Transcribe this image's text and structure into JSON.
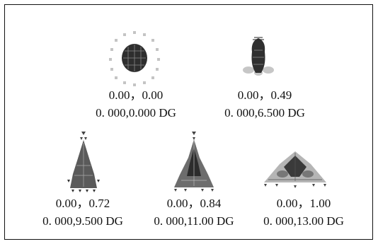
{
  "panels": [
    {
      "field": "0.00，0.00",
      "coord": "0. 000,0.000 DG"
    },
    {
      "field": "0.00，0.49",
      "coord": "0. 000,6.500 DG"
    },
    {
      "field": "0.00，0.72",
      "coord": "0. 000,9.500 DG"
    },
    {
      "field": "0.00，0.84",
      "coord": "0. 000,11.00 DG"
    },
    {
      "field": "0.00，1.00",
      "coord": "0. 000,13.00 DG"
    }
  ],
  "colors": {
    "dark": "#2b2b2b",
    "mid": "#6a6a6a",
    "light": "#bdbdbd",
    "frame": "#111111"
  }
}
